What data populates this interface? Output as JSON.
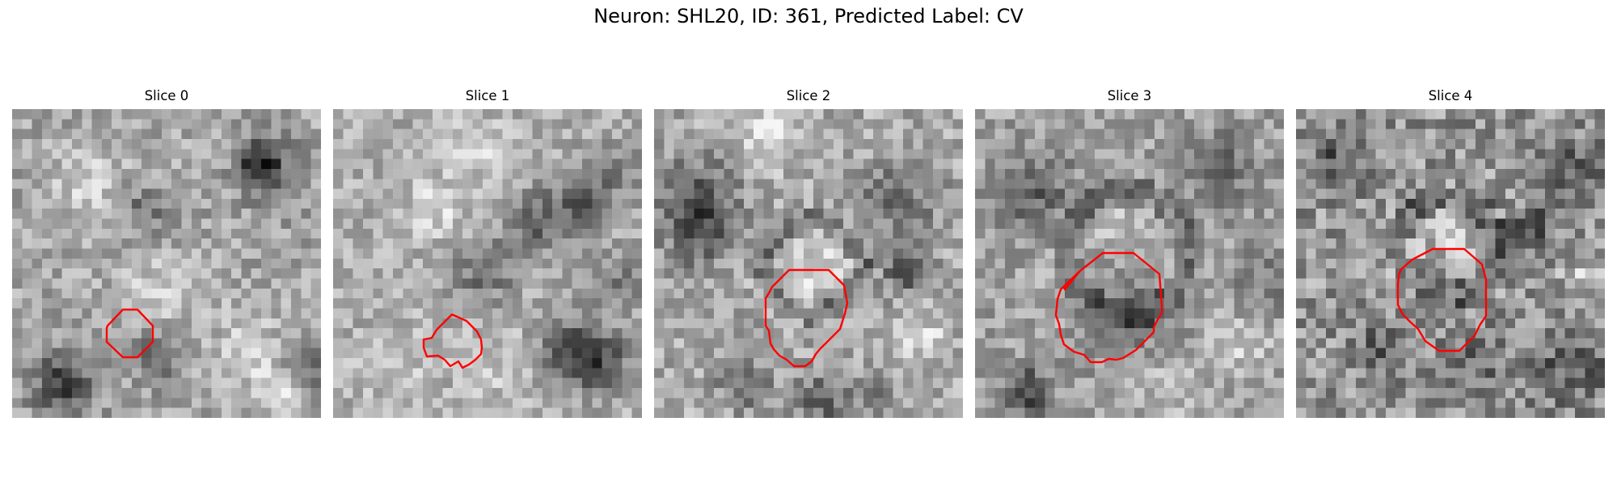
{
  "figure": {
    "title": "Neuron: SHL20, ID: 361, Predicted Label: CV"
  },
  "panels": [
    {
      "title": "Slice 0"
    },
    {
      "title": "Slice 1"
    },
    {
      "title": "Slice 2"
    },
    {
      "title": "Slice 3"
    },
    {
      "title": "Slice 4"
    }
  ],
  "colors": {
    "contour": "#ff0000",
    "colormap": "grayscale"
  }
}
